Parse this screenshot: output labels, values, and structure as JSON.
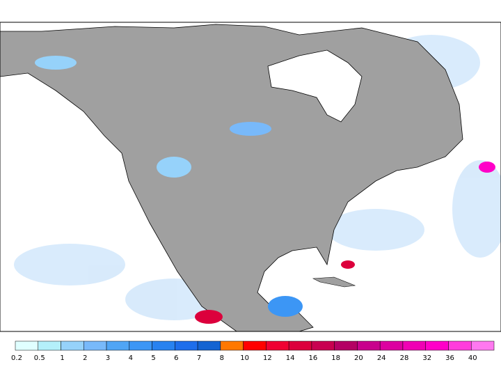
{
  "legend": {
    "labels": [
      0.2,
      0.5,
      1,
      2,
      3,
      4,
      5,
      6,
      7,
      8,
      10,
      12,
      14,
      16,
      18,
      20,
      24,
      28,
      32,
      36,
      40
    ],
    "colors": [
      "#e0ffff",
      "#b4f0fa",
      "#96d2fa",
      "#78b9fa",
      "#50a5f5",
      "#3c96f5",
      "#2882f0",
      "#1e6eeb",
      "#1464d2",
      "#ff7800",
      "#ff0000",
      "#f00032",
      "#dc003c",
      "#c80050",
      "#b40064",
      "#c8008c",
      "#dc00a0",
      "#f000b4",
      "#ff00c8",
      "#ff3cdc",
      "#ff78f0"
    ]
  }
}
